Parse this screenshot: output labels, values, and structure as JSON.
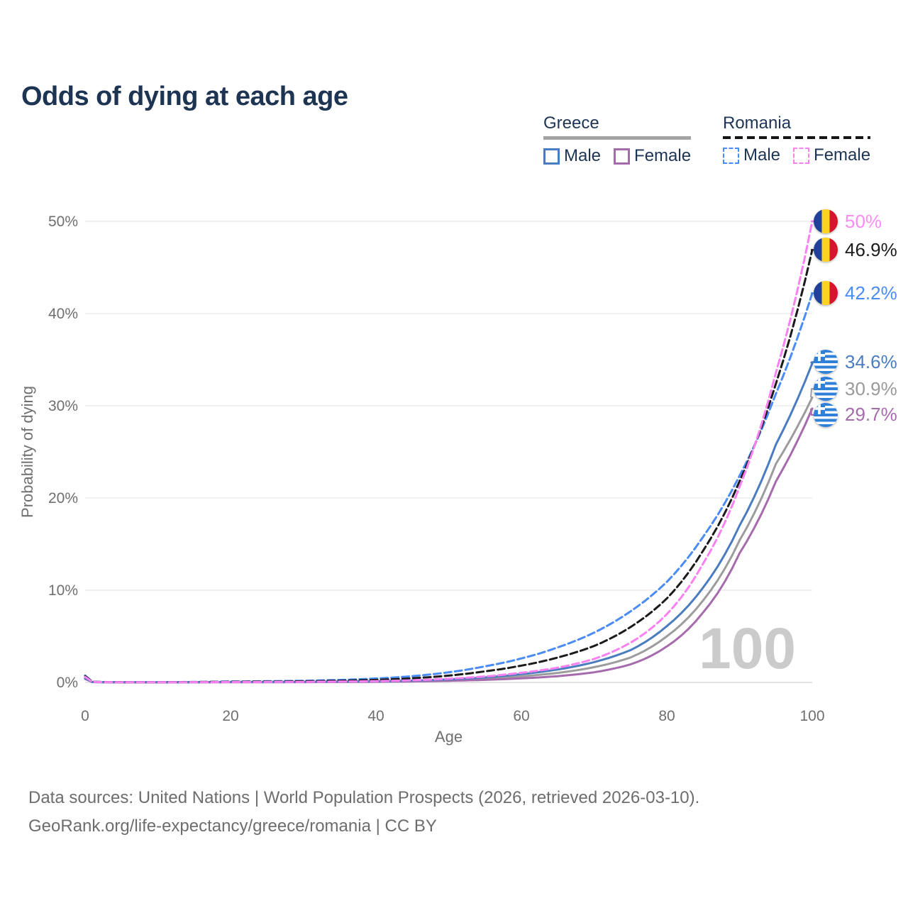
{
  "title": "Odds of dying at each age",
  "legend": {
    "groups": [
      {
        "country": "Greece",
        "line_style": "solid",
        "underline_color": "#a3a3a3",
        "items": [
          {
            "label": "Male",
            "color": "#4a7cc0"
          },
          {
            "label": "Female",
            "color": "#a66bad"
          }
        ]
      },
      {
        "country": "Romania",
        "line_style": "dashed",
        "underline_color": "#161616",
        "items": [
          {
            "label": "Male",
            "color": "#4b8bf5"
          },
          {
            "label": "Female",
            "color": "#fb80f1"
          }
        ]
      }
    ]
  },
  "chart_data": {
    "type": "line",
    "title": "Odds of dying at each age",
    "xlabel": "Age",
    "ylabel": "Probability of dying",
    "xlim": [
      0,
      100
    ],
    "ylim": [
      0,
      50
    ],
    "x_ticks": [
      0,
      20,
      40,
      60,
      80,
      100
    ],
    "y_ticks": [
      0,
      10,
      20,
      30,
      40,
      50
    ],
    "y_tick_labels": [
      "0%",
      "10%",
      "20%",
      "30%",
      "40%",
      "50%"
    ],
    "grid": true,
    "legend_position": "top-right",
    "watermark": "100",
    "y_unit": "percent",
    "series": [
      {
        "name": "Greece",
        "country": "Greece",
        "sex": "all",
        "style": "solid",
        "color": "#9c9c9c",
        "flag": "gr",
        "end_label": "30.9%",
        "end_value": 30.9,
        "label_color": "#9a9a9a",
        "label_dy": -12,
        "points": [
          [
            0,
            0.42
          ],
          [
            1,
            0.038
          ],
          [
            5,
            0.011
          ],
          [
            10,
            0.011
          ],
          [
            15,
            0.022
          ],
          [
            20,
            0.035
          ],
          [
            25,
            0.042
          ],
          [
            30,
            0.05
          ],
          [
            35,
            0.065
          ],
          [
            40,
            0.1
          ],
          [
            45,
            0.15
          ],
          [
            50,
            0.25
          ],
          [
            55,
            0.41
          ],
          [
            60,
            0.66
          ],
          [
            65,
            1.03
          ],
          [
            70,
            1.65
          ],
          [
            75,
            2.7
          ],
          [
            80,
            5.0
          ],
          [
            85,
            8.9
          ],
          [
            90,
            15.4
          ],
          [
            95,
            23.7
          ],
          [
            100,
            30.9
          ]
        ]
      },
      {
        "name": "Greece Female",
        "country": "Greece",
        "sex": "female",
        "style": "solid",
        "color": "#a66bad",
        "flag": "gr",
        "end_label": "29.7%",
        "end_value": 29.7,
        "label_color": "#a66bad",
        "label_dy": 9,
        "points": [
          [
            0,
            0.38
          ],
          [
            1,
            0.035
          ],
          [
            5,
            0.01
          ],
          [
            10,
            0.01
          ],
          [
            15,
            0.015
          ],
          [
            20,
            0.02
          ],
          [
            25,
            0.025
          ],
          [
            30,
            0.03
          ],
          [
            35,
            0.045
          ],
          [
            40,
            0.07
          ],
          [
            45,
            0.11
          ],
          [
            50,
            0.18
          ],
          [
            55,
            0.28
          ],
          [
            60,
            0.44
          ],
          [
            65,
            0.68
          ],
          [
            70,
            1.1
          ],
          [
            75,
            1.95
          ],
          [
            80,
            3.9
          ],
          [
            85,
            7.6
          ],
          [
            90,
            14.0
          ],
          [
            95,
            21.8
          ],
          [
            100,
            29.7
          ]
        ]
      },
      {
        "name": "Greece Male",
        "country": "Greece",
        "sex": "male",
        "style": "solid",
        "color": "#4a7cc0",
        "flag": "gr",
        "end_label": "34.6%",
        "end_value": 34.6,
        "label_color": "#4a7cc0",
        "label_dy": -2,
        "points": [
          [
            0,
            0.45
          ],
          [
            1,
            0.04
          ],
          [
            5,
            0.012
          ],
          [
            10,
            0.012
          ],
          [
            15,
            0.03
          ],
          [
            20,
            0.05
          ],
          [
            25,
            0.06
          ],
          [
            30,
            0.07
          ],
          [
            35,
            0.09
          ],
          [
            40,
            0.13
          ],
          [
            45,
            0.2
          ],
          [
            50,
            0.33
          ],
          [
            55,
            0.55
          ],
          [
            60,
            0.9
          ],
          [
            65,
            1.4
          ],
          [
            70,
            2.2
          ],
          [
            75,
            3.5
          ],
          [
            80,
            6.1
          ],
          [
            85,
            10.3
          ],
          [
            90,
            17.0
          ],
          [
            95,
            25.8
          ],
          [
            100,
            34.6
          ]
        ]
      },
      {
        "name": "Romania Male",
        "country": "Romania",
        "sex": "male",
        "style": "dashed",
        "color": "#4b8bf5",
        "flag": "ro",
        "end_label": "42.2%",
        "end_value": 42.2,
        "label_color": "#4b8bf5",
        "label_dy": 0,
        "points": [
          [
            0,
            0.75
          ],
          [
            1,
            0.07
          ],
          [
            5,
            0.025
          ],
          [
            10,
            0.025
          ],
          [
            15,
            0.055
          ],
          [
            20,
            0.1
          ],
          [
            25,
            0.13
          ],
          [
            30,
            0.18
          ],
          [
            35,
            0.27
          ],
          [
            40,
            0.42
          ],
          [
            45,
            0.68
          ],
          [
            50,
            1.1
          ],
          [
            55,
            1.75
          ],
          [
            60,
            2.6
          ],
          [
            65,
            3.8
          ],
          [
            70,
            5.4
          ],
          [
            75,
            7.7
          ],
          [
            80,
            10.9
          ],
          [
            85,
            15.8
          ],
          [
            90,
            22.4
          ],
          [
            95,
            31.3
          ],
          [
            100,
            42.2
          ]
        ]
      },
      {
        "name": "Romania",
        "country": "Romania",
        "sex": "all",
        "style": "dashed",
        "color": "#1b1b1b",
        "flag": "ro",
        "end_label": "46.9%",
        "end_value": 46.9,
        "label_color": "#1b1b1b",
        "label_dy": 0,
        "points": [
          [
            0,
            0.68
          ],
          [
            1,
            0.06
          ],
          [
            5,
            0.021
          ],
          [
            10,
            0.021
          ],
          [
            15,
            0.04
          ],
          [
            20,
            0.07
          ],
          [
            25,
            0.09
          ],
          [
            30,
            0.12
          ],
          [
            35,
            0.18
          ],
          [
            40,
            0.28
          ],
          [
            45,
            0.45
          ],
          [
            50,
            0.74
          ],
          [
            55,
            1.2
          ],
          [
            60,
            1.82
          ],
          [
            65,
            2.7
          ],
          [
            70,
            3.95
          ],
          [
            75,
            6.0
          ],
          [
            80,
            9.1
          ],
          [
            85,
            14.3
          ],
          [
            90,
            21.8
          ],
          [
            95,
            32.4
          ],
          [
            100,
            46.9
          ]
        ]
      },
      {
        "name": "Romania Female",
        "country": "Romania",
        "sex": "female",
        "style": "dashed",
        "color": "#fb80f1",
        "flag": "ro",
        "end_label": "50%",
        "end_value": 50.0,
        "label_color": "#ff8cf5",
        "label_dy": 0,
        "points": [
          [
            0,
            0.6
          ],
          [
            1,
            0.05
          ],
          [
            5,
            0.018
          ],
          [
            10,
            0.018
          ],
          [
            15,
            0.028
          ],
          [
            20,
            0.042
          ],
          [
            25,
            0.052
          ],
          [
            30,
            0.065
          ],
          [
            35,
            0.09
          ],
          [
            40,
            0.14
          ],
          [
            45,
            0.23
          ],
          [
            50,
            0.4
          ],
          [
            55,
            0.65
          ],
          [
            60,
            1.05
          ],
          [
            65,
            1.6
          ],
          [
            70,
            2.55
          ],
          [
            75,
            4.3
          ],
          [
            80,
            7.4
          ],
          [
            85,
            12.9
          ],
          [
            90,
            21.2
          ],
          [
            95,
            33.6
          ],
          [
            100,
            50.0
          ]
        ]
      }
    ]
  },
  "footer": {
    "line1": "Data sources: United Nations | World Population Prospects (2026, retrieved 2026-03-10).",
    "line2": "GeoRank.org/life-expectancy/greece/romania | CC BY"
  }
}
